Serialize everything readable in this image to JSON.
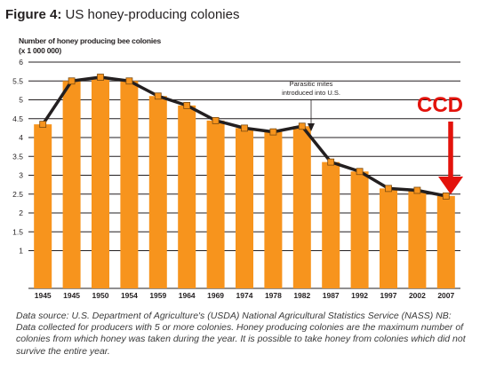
{
  "figure_label": "Figure 4:",
  "figure_title": "US honey-producing colonies",
  "source_line1": "Data source: U.S. Department of Agriculture's (USDA) National Agricultural Statistics Service (NASS) NB:",
  "source_line2": "Data collected for producers with 5 or more colonies. Honey producing colonies are the maximum number of colonies from which honey was taken during the year. It is possible to take honey from colonies which did not survive the entire year.",
  "colors": {
    "bar": "#f7941d",
    "line": "#231f20",
    "marker": "#f7941d",
    "ccd": "#e3120b"
  },
  "chart_data": {
    "type": "bar",
    "ylabel": "Number of honey producing bee colonies\n(x 1 000 000)",
    "ylim": [
      0,
      6
    ],
    "yticks": [
      "1",
      "1.5",
      "2",
      "2.5",
      "3",
      "3.5",
      "4",
      "4.5",
      "5",
      "5.5",
      "6"
    ],
    "ytick_values": [
      1,
      1.5,
      2,
      2.5,
      3,
      3.5,
      4,
      4.5,
      5,
      5.5,
      6
    ],
    "grid": true,
    "categories": [
      "1945",
      "1945",
      "1950",
      "1954",
      "1959",
      "1964",
      "1969",
      "1974",
      "1978",
      "1982",
      "1987",
      "1992",
      "1997",
      "2002",
      "2007"
    ],
    "values": [
      4.35,
      5.5,
      5.6,
      5.5,
      5.1,
      4.85,
      4.45,
      4.25,
      4.15,
      4.3,
      3.35,
      3.1,
      2.65,
      2.6,
      2.45
    ],
    "overlay": "line-with-markers",
    "annotations": [
      {
        "text": "Parasitic mites\nintroduced into U.S.",
        "category_index": 9,
        "arrow": true
      },
      {
        "text": "CCD",
        "category_index": 14,
        "arrow": true,
        "color": "#e3120b"
      }
    ]
  }
}
